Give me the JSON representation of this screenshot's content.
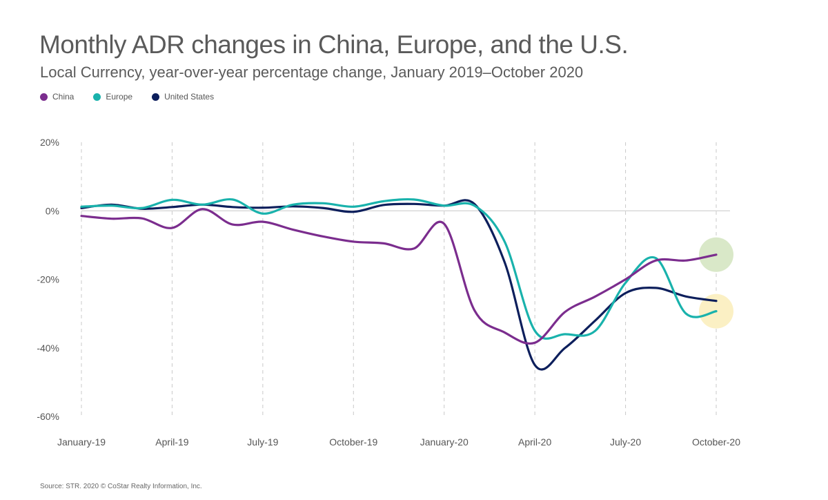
{
  "header": {
    "title": "Monthly ADR changes in China, Europe, and the U.S.",
    "subtitle": "Local Currency, year-over-year percentage change, January 2019–October 2020"
  },
  "legend": [
    {
      "label": "China",
      "color": "#7b2d8e"
    },
    {
      "label": "Europe",
      "color": "#19b2ac"
    },
    {
      "label": "United States",
      "color": "#0d1f5c"
    }
  ],
  "footer": {
    "source": "Source: STR. 2020 © CoStar Realty Information, Inc."
  },
  "chart_data": {
    "type": "line",
    "title": "Monthly ADR changes in China, Europe, and the U.S.",
    "subtitle": "Local Currency, year-over-year percentage change, January 2019–October 2020",
    "xlabel": "",
    "ylabel": "",
    "ylim": [
      -60,
      20
    ],
    "yticks": [
      20,
      0,
      -20,
      -40,
      -60
    ],
    "ytick_labels": [
      "20%",
      "0%",
      "-20%",
      "-40%",
      "-60%"
    ],
    "x": [
      "Jan-19",
      "Feb-19",
      "Mar-19",
      "Apr-19",
      "May-19",
      "Jun-19",
      "Jul-19",
      "Aug-19",
      "Sep-19",
      "Oct-19",
      "Nov-19",
      "Dec-19",
      "Jan-20",
      "Feb-20",
      "Mar-20",
      "Apr-20",
      "May-20",
      "Jun-20",
      "Jul-20",
      "Aug-20",
      "Sep-20",
      "Oct-20"
    ],
    "xtick_labels": [
      "January-19",
      "April-19",
      "July-19",
      "October-19",
      "January-20",
      "April-20",
      "July-20",
      "October-20"
    ],
    "xtick_positions": [
      0,
      3,
      6,
      9,
      12,
      15,
      18,
      21
    ],
    "series": [
      {
        "name": "China",
        "color": "#7b2d8e",
        "values": [
          -1.5,
          -2.3,
          -2.2,
          -5.0,
          0.5,
          -4.0,
          -3.2,
          -5.5,
          -7.5,
          -9.0,
          -9.5,
          -11.0,
          -3.8,
          -29.0,
          -35.5,
          -38.5,
          -29.5,
          -25.0,
          -20.0,
          -14.5,
          -14.5,
          -12.8
        ]
      },
      {
        "name": "Europe",
        "color": "#19b2ac",
        "values": [
          1.2,
          1.5,
          0.8,
          3.2,
          1.8,
          3.3,
          -0.8,
          1.8,
          2.2,
          1.2,
          2.8,
          3.3,
          1.5,
          1.5,
          -9.0,
          -35.0,
          -36.0,
          -35.0,
          -21.0,
          -13.8,
          -30.0,
          -29.3
        ]
      },
      {
        "name": "United States",
        "color": "#0d1f5c",
        "values": [
          0.8,
          1.8,
          0.6,
          1.1,
          1.8,
          1.1,
          0.9,
          1.3,
          0.8,
          -0.3,
          1.7,
          2.0,
          1.5,
          2.0,
          -15.0,
          -45.0,
          -40.0,
          -32.0,
          -24.0,
          -22.5,
          -25.0,
          -26.3
        ]
      }
    ],
    "highlights": [
      {
        "series": "China",
        "x": "Oct-20",
        "color": "#d9e8c8"
      },
      {
        "series": "Europe",
        "x": "Oct-20",
        "color": "#fbf0c4"
      }
    ],
    "grid": "vertical dashed at x ticks; solid zero line"
  }
}
